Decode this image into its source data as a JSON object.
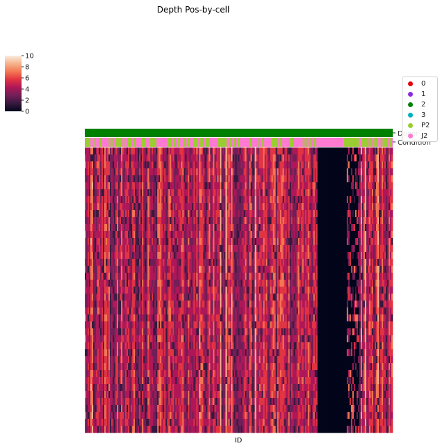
{
  "chart_data": {
    "type": "heatmap",
    "title": "Depth Pos-by-cell",
    "xlabel": "ID",
    "ylabel": "",
    "colorbar": {
      "ticks": [
        0,
        2,
        4,
        6,
        8,
        10
      ],
      "vmin": 0,
      "vmax": 10,
      "colormap": "rocket",
      "colors": [
        "#03051a",
        "#36193e",
        "#701f57",
        "#ae1759",
        "#e13342",
        "#f37651",
        "#f6b48f",
        "#faebdd"
      ]
    },
    "column_annotations": [
      {
        "name": "Donor",
        "segments": [
          {
            "category": "2",
            "fraction": 1.0
          }
        ]
      },
      {
        "name": "Condition",
        "pattern": "P2 and J2 columns interleaved, then a contiguous J2 block, a P2 block, and interleaved again",
        "segments": [
          {
            "category": "mixed",
            "fraction": 0.755
          },
          {
            "category": "J2",
            "fraction": 0.085
          },
          {
            "category": "P2",
            "fraction": 0.05
          },
          {
            "category": "mixed",
            "fraction": 0.11
          }
        ]
      }
    ],
    "column_regions": [
      {
        "fraction": 0.755,
        "level": "mid-high",
        "range": [
          3,
          8
        ]
      },
      {
        "fraction": 0.085,
        "level": "zero",
        "range": [
          0,
          0
        ]
      },
      {
        "fraction": 0.01,
        "level": "zero",
        "range": [
          0,
          0
        ]
      },
      {
        "fraction": 0.04,
        "level": "mixed",
        "range": [
          0,
          7
        ]
      },
      {
        "fraction": 0.11,
        "level": "mid-high",
        "range": [
          3,
          8
        ]
      }
    ],
    "legend": {
      "placement": "right",
      "entries": [
        {
          "label": "0",
          "color": "#e8000b"
        },
        {
          "label": "1",
          "color": "#8b2be2"
        },
        {
          "label": "2",
          "color": "#008000"
        },
        {
          "label": "3",
          "color": "#00b0c0"
        },
        {
          "label": "P2",
          "color": "#9acd32"
        },
        {
          "label": "J2",
          "color": "#ff7ad0"
        }
      ]
    }
  }
}
